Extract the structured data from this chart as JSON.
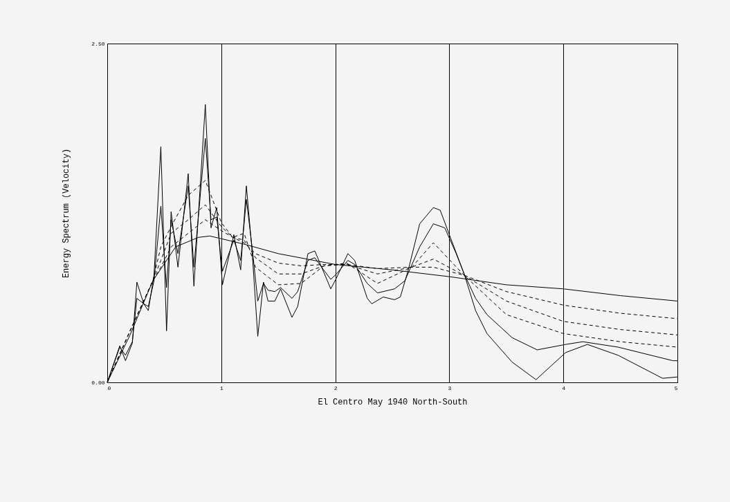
{
  "chart_data": {
    "type": "line",
    "xlabel": "El Centro May 1940 North-South",
    "ylabel": "Energy Spectrum (Velocity)",
    "xlim": [
      0,
      5
    ],
    "xticks": [
      0,
      1,
      2,
      3,
      4,
      5
    ],
    "ylim": [
      0,
      2.5
    ],
    "yticks": [
      {
        "value": 0,
        "label": "0.00"
      },
      {
        "value": 2.5,
        "label": "2.50"
      }
    ],
    "grid": "x",
    "marker": "none",
    "series": [
      {
        "color": "#000000",
        "line_style": "solid",
        "x": [
          0,
          0.11,
          0.16,
          0.22,
          0.26,
          0.32,
          0.36,
          0.41,
          0.47,
          0.52,
          0.56,
          0.62,
          0.71,
          0.76,
          0.86,
          0.91,
          0.96,
          1.01,
          1.11,
          1.17,
          1.22,
          1.27,
          1.32,
          1.37,
          1.41,
          1.47,
          1.52,
          1.62,
          1.67,
          1.76,
          1.82,
          1.88,
          1.96,
          2.01,
          2.11,
          2.17,
          2.28,
          2.32,
          2.42,
          2.52,
          2.57,
          2.64,
          2.74,
          2.86,
          2.92,
          3.0,
          3.13,
          3.23,
          3.33,
          3.55,
          3.76,
          4.02,
          4.21,
          4.48,
          4.87,
          5
        ],
        "values": [
          0,
          0.27,
          0.16,
          0.29,
          0.74,
          0.58,
          0.53,
          0.79,
          1.74,
          0.38,
          1.26,
          0.85,
          1.54,
          0.71,
          2.05,
          1.14,
          1.29,
          0.72,
          1.09,
          0.83,
          1.45,
          0.97,
          0.34,
          0.74,
          0.6,
          0.6,
          0.69,
          0.48,
          0.56,
          0.95,
          0.97,
          0.85,
          0.69,
          0.77,
          0.95,
          0.9,
          0.62,
          0.58,
          0.63,
          0.61,
          0.63,
          0.83,
          1.17,
          1.29,
          1.27,
          1.09,
          0.8,
          0.53,
          0.36,
          0.15,
          0.02,
          0.22,
          0.28,
          0.2,
          0.03,
          0.04
        ]
      },
      {
        "color": "#000000",
        "line_style": "solid",
        "x": [
          0,
          0.11,
          0.16,
          0.22,
          0.26,
          0.32,
          0.36,
          0.41,
          0.47,
          0.52,
          0.56,
          0.62,
          0.71,
          0.76,
          0.86,
          0.91,
          0.96,
          1.01,
          1.11,
          1.17,
          1.22,
          1.27,
          1.32,
          1.37,
          1.41,
          1.47,
          1.52,
          1.62,
          1.67,
          1.76,
          1.82,
          1.88,
          1.96,
          2.01,
          2.11,
          2.17,
          2.28,
          2.37,
          2.52,
          2.61,
          2.74,
          2.86,
          2.96,
          3.06,
          3.13,
          3.23,
          3.33,
          3.55,
          3.77,
          4.02,
          4.17,
          4.48,
          4.96,
          5
        ],
        "values": [
          0,
          0.26,
          0.2,
          0.3,
          0.62,
          0.58,
          0.56,
          0.75,
          1.3,
          0.7,
          1.2,
          0.95,
          1.45,
          0.85,
          1.8,
          1.2,
          1.22,
          0.82,
          1.05,
          0.9,
          1.35,
          1.0,
          0.6,
          0.73,
          0.68,
          0.67,
          0.7,
          0.62,
          0.67,
          0.9,
          0.92,
          0.85,
          0.76,
          0.8,
          0.9,
          0.87,
          0.73,
          0.66,
          0.69,
          0.75,
          1.0,
          1.17,
          1.14,
          0.95,
          0.8,
          0.62,
          0.5,
          0.33,
          0.24,
          0.28,
          0.3,
          0.26,
          0.16,
          0.16
        ]
      },
      {
        "color": "#000000",
        "line_style": "dashed",
        "x": [
          0,
          0.2,
          0.4,
          0.47,
          0.56,
          0.71,
          0.86,
          1.0,
          1.1,
          1.2,
          1.3,
          1.5,
          1.7,
          1.9,
          2.1,
          2.37,
          2.67,
          2.86,
          3.13,
          3.5,
          4.0,
          4.5,
          5
        ],
        "values": [
          0,
          0.38,
          0.75,
          1.0,
          1.15,
          1.38,
          1.49,
          1.18,
          1.07,
          1.1,
          0.85,
          0.72,
          0.73,
          0.86,
          0.88,
          0.73,
          0.85,
          1.03,
          0.79,
          0.5,
          0.36,
          0.3,
          0.26
        ]
      },
      {
        "color": "#000000",
        "line_style": "dashed",
        "x": [
          0,
          0.2,
          0.4,
          0.47,
          0.56,
          0.71,
          0.86,
          1.0,
          1.1,
          1.2,
          1.3,
          1.5,
          1.7,
          1.9,
          2.1,
          2.37,
          2.67,
          2.86,
          3.13,
          3.5,
          4.0,
          4.5,
          5
        ],
        "values": [
          0,
          0.38,
          0.75,
          0.9,
          1.1,
          1.2,
          1.31,
          1.15,
          1.07,
          1.05,
          0.92,
          0.8,
          0.8,
          0.86,
          0.87,
          0.8,
          0.85,
          0.91,
          0.79,
          0.6,
          0.45,
          0.39,
          0.35
        ]
      },
      {
        "color": "#000000",
        "line_style": "dashed",
        "x": [
          0,
          0.2,
          0.4,
          0.47,
          0.56,
          0.71,
          0.86,
          1.0,
          1.1,
          1.2,
          1.3,
          1.5,
          1.7,
          1.9,
          2.1,
          2.37,
          2.67,
          2.86,
          3.13,
          3.5,
          4.0,
          4.5,
          5
        ],
        "values": [
          0,
          0.38,
          0.75,
          0.85,
          1.0,
          1.1,
          1.2,
          1.12,
          1.07,
          1.03,
          0.95,
          0.88,
          0.86,
          0.87,
          0.87,
          0.84,
          0.85,
          0.85,
          0.79,
          0.67,
          0.57,
          0.51,
          0.47
        ]
      },
      {
        "color": "#000000",
        "line_style": "solid",
        "x": [
          0,
          0.2,
          0.4,
          0.6,
          0.8,
          0.9,
          1.0,
          1.2,
          1.5,
          2.0,
          2.5,
          3.0,
          3.5,
          4.0,
          4.5,
          5.0
        ],
        "values": [
          0,
          0.35,
          0.75,
          1.0,
          1.07,
          1.08,
          1.06,
          1.02,
          0.95,
          0.87,
          0.83,
          0.78,
          0.72,
          0.69,
          0.64,
          0.6
        ]
      }
    ]
  }
}
